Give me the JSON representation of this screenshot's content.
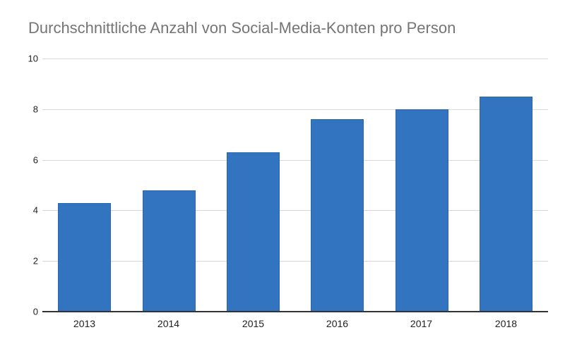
{
  "chart_data": {
    "type": "bar",
    "title": "Durchschnittliche Anzahl von Social-Media-Konten pro Person",
    "categories": [
      "2013",
      "2014",
      "2015",
      "2016",
      "2017",
      "2018"
    ],
    "values": [
      4.3,
      4.8,
      6.3,
      7.6,
      8.0,
      8.5
    ],
    "xlabel": "",
    "ylabel": "",
    "ylim": [
      0,
      10
    ],
    "yticks": [
      0,
      2,
      4,
      6,
      8,
      10
    ],
    "grid": true,
    "legend": "none",
    "colors": {
      "bar": "#3374c0",
      "title": "#757575",
      "tick_label": "#212121",
      "gridline": "#d9d9d9",
      "axis_line": "#333333",
      "background": "#ffffff"
    }
  }
}
